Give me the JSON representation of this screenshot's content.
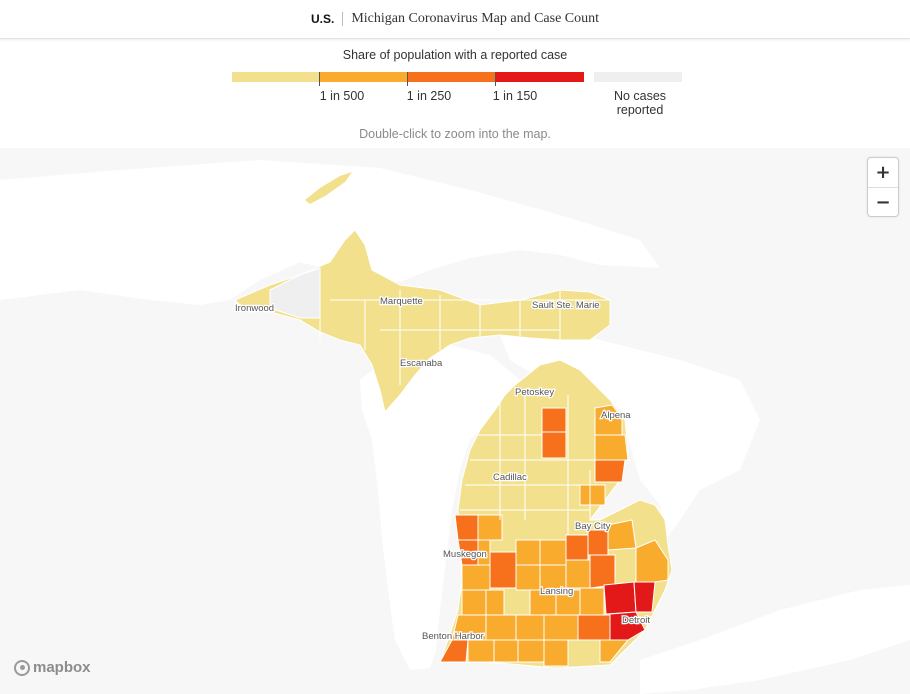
{
  "header": {
    "section": "U.S.",
    "title": "Michigan Coronavirus Map and Case Count"
  },
  "legend": {
    "title": "Share of population with a reported case",
    "bins": [
      {
        "color": "#f2e08c"
      },
      {
        "color": "#f9ab2d"
      },
      {
        "color": "#f7701c"
      },
      {
        "color": "#e31919"
      }
    ],
    "ticks": [
      "1 in 500",
      "1 in 250",
      "1 in 150"
    ],
    "no_data": {
      "label": "No cases reported",
      "color": "#efefef"
    }
  },
  "hint": "Double-click to zoom into the map.",
  "zoom": {
    "in_icon": "plus-icon",
    "out_icon": "minus-icon"
  },
  "attribution": {
    "logo": "mapbox"
  },
  "cities": [
    "Ironwood",
    "Marquette",
    "Sault Ste. Marie",
    "Escanaba",
    "Petoskey",
    "Alpena",
    "Cadillac",
    "Bay City",
    "Muskegon",
    "Lansing",
    "Benton Harbor",
    "Detroit"
  ],
  "colors": {
    "low": "#f2e08c",
    "mid": "#f9ab2d",
    "high": "#f7701c",
    "highest": "#e31919",
    "none": "#efefef",
    "water": "#ffffff",
    "land": "#f7f7f7"
  }
}
